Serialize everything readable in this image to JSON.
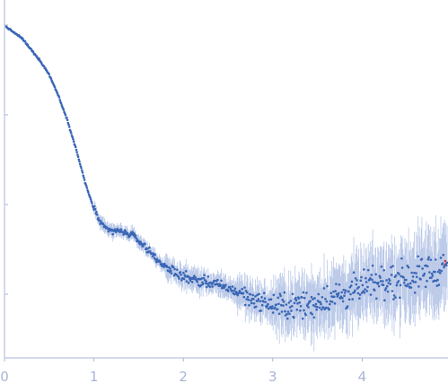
{
  "chart_data": {
    "type": "scatter",
    "title": "",
    "xlabel": "",
    "ylabel": "",
    "xlim": [
      0,
      4.95
    ],
    "ylog": true,
    "y_decades_visible": 3.7,
    "grid": false,
    "legend": "none",
    "x_ticks": [
      {
        "value": 0,
        "label": "0"
      },
      {
        "value": 1,
        "label": "1"
      },
      {
        "value": 2,
        "label": "2"
      },
      {
        "value": 3,
        "label": "3"
      },
      {
        "value": 4,
        "label": "4"
      }
    ],
    "y_tick_positions_log10": [
      0,
      -1,
      -2,
      -3
    ],
    "colors": {
      "points": "#3a66b5",
      "error_bars": "#b9c8e8",
      "outliers": "#cc3333",
      "axis": "#aab4d4"
    },
    "profile_log10": [
      [
        0.02,
        -0.02
      ],
      [
        0.2,
        -0.15
      ],
      [
        0.4,
        -0.4
      ],
      [
        0.5,
        -0.55
      ],
      [
        0.6,
        -0.78
      ],
      [
        0.7,
        -1.05
      ],
      [
        0.8,
        -1.38
      ],
      [
        0.9,
        -1.75
      ],
      [
        1.0,
        -2.05
      ],
      [
        1.08,
        -2.22
      ],
      [
        1.15,
        -2.28
      ],
      [
        1.3,
        -2.3
      ],
      [
        1.45,
        -2.35
      ],
      [
        1.6,
        -2.5
      ],
      [
        1.8,
        -2.7
      ],
      [
        2.0,
        -2.8
      ],
      [
        2.2,
        -2.85
      ],
      [
        2.4,
        -2.9
      ],
      [
        2.6,
        -2.97
      ],
      [
        2.8,
        -3.06
      ],
      [
        3.0,
        -3.13
      ],
      [
        3.2,
        -3.13
      ],
      [
        3.4,
        -3.12
      ],
      [
        3.6,
        -3.05
      ],
      [
        3.8,
        -3.0
      ],
      [
        4.0,
        -2.93
      ],
      [
        4.2,
        -2.87
      ],
      [
        4.4,
        -2.83
      ],
      [
        4.6,
        -2.78
      ],
      [
        4.8,
        -2.72
      ],
      [
        4.95,
        -2.7
      ]
    ],
    "point_count": 700
  }
}
